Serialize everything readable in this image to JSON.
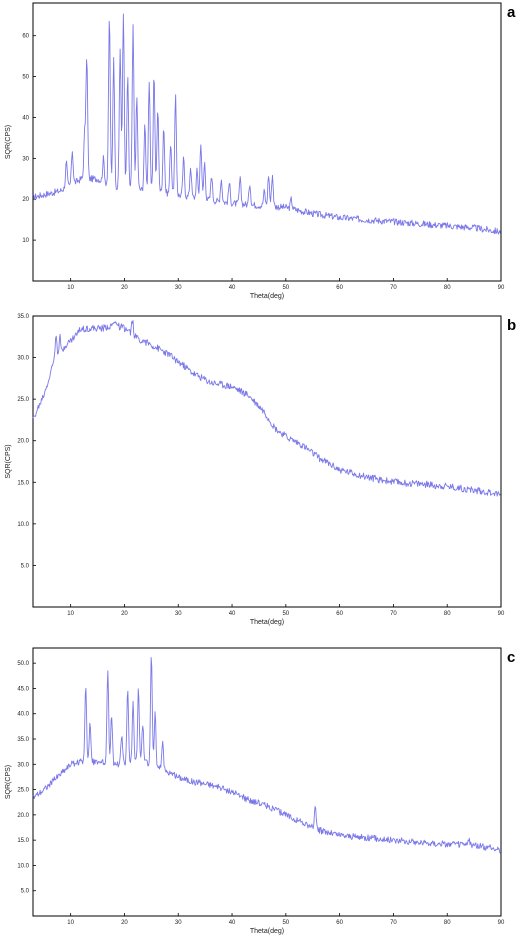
{
  "chart_data": [
    {
      "type": "line",
      "panel_label": "a",
      "xlabel": "Theta(deg)",
      "ylabel": "SQR(CPS)",
      "xlim": [
        3,
        90
      ],
      "ylim": [
        0,
        68
      ],
      "x_ticks": [
        "10",
        "20",
        "30",
        "40",
        "50",
        "60",
        "70",
        "80",
        "90"
      ],
      "y_ticks": [
        "10",
        "20",
        "30",
        "40",
        "50",
        "60"
      ],
      "line_color": "#7b78e8",
      "baseline": [
        [
          3,
          20.5
        ],
        [
          8,
          22
        ],
        [
          12,
          25
        ],
        [
          15,
          25
        ],
        [
          18,
          23
        ],
        [
          22,
          22.5
        ],
        [
          26,
          22
        ],
        [
          30,
          21
        ],
        [
          35,
          20
        ],
        [
          40,
          19
        ],
        [
          45,
          18.5
        ],
        [
          50,
          18
        ],
        [
          55,
          16.5
        ],
        [
          60,
          15.5
        ],
        [
          65,
          15
        ],
        [
          70,
          14.5
        ],
        [
          75,
          14
        ],
        [
          80,
          13.5
        ],
        [
          85,
          13
        ],
        [
          90,
          12
        ]
      ],
      "peaks": [
        [
          9.2,
          29
        ],
        [
          10.3,
          32
        ],
        [
          12.6,
          36
        ],
        [
          13.0,
          55
        ],
        [
          16.1,
          30
        ],
        [
          17.2,
          65
        ],
        [
          18.0,
          55
        ],
        [
          19.2,
          57
        ],
        [
          19.8,
          66
        ],
        [
          20.6,
          50
        ],
        [
          21.6,
          62
        ],
        [
          22.3,
          45
        ],
        [
          23.8,
          38
        ],
        [
          24.6,
          49
        ],
        [
          25.5,
          51
        ],
        [
          26.2,
          42
        ],
        [
          27.3,
          38
        ],
        [
          28.6,
          34
        ],
        [
          29.5,
          45
        ],
        [
          31.0,
          30
        ],
        [
          32.3,
          28
        ],
        [
          33.5,
          27
        ],
        [
          34.2,
          34
        ],
        [
          34.9,
          29
        ],
        [
          36.2,
          26
        ],
        [
          38.0,
          25
        ],
        [
          39.5,
          24
        ],
        [
          41.5,
          25
        ],
        [
          43.3,
          24
        ],
        [
          46.0,
          22
        ],
        [
          46.8,
          26
        ],
        [
          47.5,
          26
        ],
        [
          51.0,
          20
        ]
      ]
    },
    {
      "type": "line",
      "panel_label": "b",
      "xlabel": "Theta(deg)",
      "ylabel": "SQR(CPS)",
      "xlim": [
        3,
        90
      ],
      "ylim": [
        0,
        35
      ],
      "x_ticks": [
        "10",
        "20",
        "30",
        "40",
        "50",
        "60",
        "70",
        "80",
        "90"
      ],
      "y_ticks": [
        "5.0",
        "10.0",
        "15.0",
        "20.0",
        "25.0",
        "30.0",
        "35.0"
      ],
      "line_color": "#7b78e8",
      "baseline": [
        [
          3,
          22.5
        ],
        [
          4,
          24
        ],
        [
          5,
          25.5
        ],
        [
          6,
          27.5
        ],
        [
          7,
          30
        ],
        [
          8,
          30
        ],
        [
          9,
          31.5
        ],
        [
          10,
          32
        ],
        [
          12,
          33.5
        ],
        [
          14,
          33.5
        ],
        [
          16,
          33.5
        ],
        [
          18,
          34
        ],
        [
          20,
          33.5
        ],
        [
          22,
          32.5
        ],
        [
          25,
          31.5
        ],
        [
          28,
          30.5
        ],
        [
          30,
          29.5
        ],
        [
          33,
          28
        ],
        [
          36,
          27
        ],
        [
          40,
          26.5
        ],
        [
          43,
          25.5
        ],
        [
          46,
          23.5
        ],
        [
          48,
          21.5
        ],
        [
          50,
          20.5
        ],
        [
          53,
          19.5
        ],
        [
          56,
          18
        ],
        [
          60,
          16.5
        ],
        [
          63,
          16
        ],
        [
          66,
          15.5
        ],
        [
          70,
          15
        ],
        [
          75,
          14.8
        ],
        [
          80,
          14.5
        ],
        [
          85,
          14
        ],
        [
          88,
          13.8
        ],
        [
          90,
          13.5
        ]
      ],
      "peaks": [
        [
          7.3,
          33
        ],
        [
          8.0,
          33
        ],
        [
          18.4,
          34.5
        ],
        [
          21.5,
          34.5
        ]
      ]
    },
    {
      "type": "line",
      "panel_label": "c",
      "xlabel": "Theta(deg)",
      "ylabel": "SQR(CPS)",
      "xlim": [
        3,
        90
      ],
      "ylim": [
        0,
        53
      ],
      "x_ticks": [
        "10",
        "20",
        "30",
        "40",
        "50",
        "60",
        "70",
        "80",
        "90"
      ],
      "y_ticks": [
        "5.0",
        "10.0",
        "15.0",
        "20.0",
        "25.0",
        "30.0",
        "35.0",
        "40.0",
        "45.0",
        "50.0"
      ],
      "line_color": "#7b78e8",
      "baseline": [
        [
          3,
          23.5
        ],
        [
          5,
          25
        ],
        [
          8,
          28
        ],
        [
          10,
          30
        ],
        [
          12,
          30.5
        ],
        [
          15,
          30.5
        ],
        [
          18,
          30
        ],
        [
          20,
          30
        ],
        [
          23,
          30.5
        ],
        [
          25,
          30
        ],
        [
          28,
          28.5
        ],
        [
          30,
          27.5
        ],
        [
          33,
          26.5
        ],
        [
          36,
          26
        ],
        [
          40,
          24.5
        ],
        [
          43,
          23
        ],
        [
          46,
          22
        ],
        [
          50,
          20
        ],
        [
          53,
          18.5
        ],
        [
          56,
          17
        ],
        [
          60,
          16
        ],
        [
          65,
          15.5
        ],
        [
          70,
          15
        ],
        [
          75,
          14.5
        ],
        [
          80,
          14.2
        ],
        [
          85,
          14
        ],
        [
          88,
          13.5
        ],
        [
          90,
          13
        ]
      ],
      "peaks": [
        [
          12.8,
          46
        ],
        [
          13.6,
          38
        ],
        [
          16.9,
          49
        ],
        [
          17.6,
          40
        ],
        [
          19.5,
          36
        ],
        [
          20.6,
          45
        ],
        [
          21.6,
          42
        ],
        [
          22.6,
          45
        ],
        [
          23.4,
          38
        ],
        [
          25.0,
          52
        ],
        [
          25.7,
          40
        ],
        [
          27.1,
          35
        ],
        [
          55.5,
          22
        ],
        [
          84.0,
          15
        ]
      ]
    }
  ]
}
